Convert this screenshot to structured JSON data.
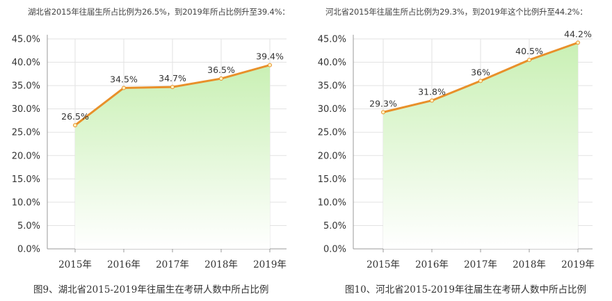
{
  "charts": [
    {
      "subtitle": "湖北省2015年往届生所占比例为26.5%，到2019年所占比例升至39.4%：",
      "caption": "图9、湖北省2015-2019年往届生在考研人数中所占比例"
    },
    {
      "subtitle": "河北省2015年往届生所占比例为29.3%，到2019年这个比例升至44.2%：",
      "caption": "图10、河北省2015-2019年往届生在考研人数中所占比例"
    }
  ],
  "colors": {
    "line": "#e8902a",
    "fill_top": "#c9f0b4",
    "fill_bottom": "#ffffff",
    "grid": "#e2e2e2",
    "axis": "#999999"
  },
  "chart_data": [
    {
      "type": "area",
      "categories": [
        "2015年",
        "2016年",
        "2017年",
        "2018年",
        "2019年"
      ],
      "values": [
        26.5,
        34.5,
        34.7,
        36.5,
        39.4
      ],
      "data_labels": [
        "26.5%",
        "34.5%",
        "34.7%",
        "36.5%",
        "39.4%"
      ],
      "ylim": [
        0,
        45
      ],
      "yticks": [
        0,
        5,
        10,
        15,
        20,
        25,
        30,
        35,
        40,
        45
      ],
      "ytick_labels": [
        "0.0%",
        "5.0%",
        "10.0%",
        "15.0%",
        "20.0%",
        "25.0%",
        "30.0%",
        "35.0%",
        "40.0%",
        "45.0%"
      ],
      "grid": true
    },
    {
      "type": "area",
      "categories": [
        "2015年",
        "2016年",
        "2017年",
        "2018年",
        "2019年"
      ],
      "values": [
        29.3,
        31.8,
        36,
        40.5,
        44.2
      ],
      "data_labels": [
        "29.3%",
        "31.8%",
        "36%",
        "40.5%",
        "44.2%"
      ],
      "ylim": [
        0,
        45
      ],
      "yticks": [
        0,
        5,
        10,
        15,
        20,
        25,
        30,
        35,
        40,
        45
      ],
      "ytick_labels": [
        "0.0%",
        "5.0%",
        "10.0%",
        "15.0%",
        "20.0%",
        "25.0%",
        "30.0%",
        "35.0%",
        "40.0%",
        "45.0%"
      ],
      "grid": true
    }
  ]
}
